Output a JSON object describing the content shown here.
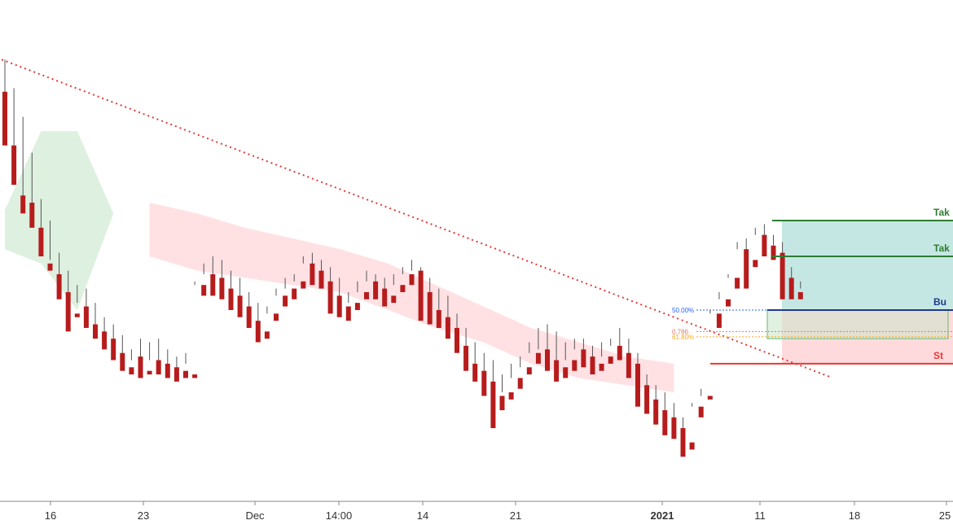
{
  "chart_data": {
    "type": "candlestick",
    "title": "",
    "xlabel": "",
    "ylabel": "",
    "x_ticks": [
      "16",
      "23",
      "Dec",
      "14:00",
      "14",
      "21",
      "2021",
      "11",
      "18",
      "25"
    ],
    "x_tick_bold": [
      "2021"
    ],
    "candles": [
      [
        1,
        96,
        105,
        83,
        81
      ],
      [
        2,
        81,
        97,
        73,
        70
      ],
      [
        3,
        67,
        89,
        64,
        62
      ],
      [
        4,
        65,
        79,
        60,
        58
      ],
      [
        5,
        58,
        66,
        52,
        50
      ],
      [
        6,
        48,
        60,
        49,
        46
      ],
      [
        7,
        45,
        51,
        40,
        38
      ],
      [
        8,
        40,
        46,
        32,
        29
      ],
      [
        9,
        34,
        42,
        37,
        33
      ],
      [
        10,
        36,
        41,
        32,
        30
      ],
      [
        11,
        31,
        37,
        29,
        27
      ],
      [
        12,
        29,
        33,
        26,
        24
      ],
      [
        13,
        27,
        31,
        23,
        21
      ],
      [
        14,
        23,
        28,
        20,
        18
      ],
      [
        15,
        19,
        24,
        21,
        17
      ],
      [
        16,
        22,
        27,
        19,
        16
      ],
      [
        17,
        18,
        26,
        21,
        17
      ],
      [
        18,
        21,
        27,
        19,
        17
      ],
      [
        19,
        20,
        24,
        18,
        16
      ],
      [
        20,
        19,
        22,
        17,
        15
      ],
      [
        21,
        18,
        23,
        20,
        16
      ],
      [
        22,
        17,
        43,
        42,
        16
      ],
      [
        23,
        42,
        48,
        45,
        39
      ],
      [
        24,
        45,
        50,
        44,
        39
      ],
      [
        25,
        44,
        49,
        41,
        38
      ],
      [
        26,
        41,
        46,
        39,
        35
      ],
      [
        27,
        39,
        44,
        36,
        33
      ],
      [
        28,
        36,
        40,
        32,
        30
      ],
      [
        29,
        32,
        37,
        29,
        26
      ],
      [
        30,
        29,
        36,
        34,
        27
      ],
      [
        31,
        34,
        41,
        39,
        32
      ],
      [
        32,
        39,
        44,
        41,
        36
      ],
      [
        33,
        41,
        45,
        43,
        38
      ],
      [
        34,
        43,
        50,
        48,
        41
      ],
      [
        35,
        48,
        51,
        46,
        42
      ],
      [
        36,
        46,
        49,
        43,
        41
      ],
      [
        37,
        43,
        47,
        39,
        34
      ],
      [
        38,
        39,
        44,
        36,
        33
      ],
      [
        39,
        36,
        40,
        37,
        32
      ],
      [
        40,
        37,
        43,
        40,
        35
      ],
      [
        41,
        40,
        46,
        43,
        38
      ],
      [
        42,
        43,
        45,
        41,
        38
      ],
      [
        43,
        41,
        44,
        39,
        36
      ],
      [
        44,
        39,
        45,
        42,
        37
      ],
      [
        45,
        42,
        47,
        45,
        40
      ],
      [
        46,
        45,
        49,
        46,
        42
      ],
      [
        47,
        46,
        47,
        40,
        32
      ],
      [
        48,
        40,
        44,
        35,
        31
      ],
      [
        49,
        35,
        41,
        33,
        30
      ],
      [
        50,
        33,
        39,
        30,
        27
      ],
      [
        51,
        30,
        34,
        25,
        23
      ],
      [
        52,
        25,
        30,
        20,
        18
      ],
      [
        53,
        20,
        26,
        18,
        15
      ],
      [
        54,
        18,
        23,
        15,
        11
      ],
      [
        55,
        15,
        21,
        11,
        2
      ],
      [
        56,
        11,
        17,
        12,
        7
      ],
      [
        57,
        12,
        20,
        16,
        10
      ],
      [
        58,
        16,
        22,
        19,
        13
      ],
      [
        59,
        19,
        26,
        23,
        17
      ],
      [
        60,
        23,
        30,
        24,
        20
      ],
      [
        61,
        24,
        31,
        21,
        18
      ],
      [
        62,
        21,
        29,
        19,
        15
      ],
      [
        63,
        19,
        26,
        21,
        16
      ],
      [
        64,
        21,
        27,
        24,
        18
      ],
      [
        65,
        24,
        27,
        22,
        19
      ],
      [
        66,
        22,
        25,
        20,
        17
      ],
      [
        67,
        20,
        26,
        22,
        18
      ],
      [
        68,
        22,
        27,
        25,
        20
      ],
      [
        69,
        25,
        30,
        23,
        21
      ],
      [
        70,
        23,
        27,
        20,
        16
      ],
      [
        71,
        20,
        23,
        14,
        8
      ],
      [
        72,
        14,
        17,
        10,
        6
      ],
      [
        73,
        10,
        14,
        7,
        3
      ],
      [
        74,
        7,
        12,
        5,
        0
      ],
      [
        75,
        5,
        9,
        2,
        -1
      ],
      [
        76,
        2,
        5,
        -2,
        -6
      ],
      [
        77,
        -2,
        9,
        8,
        -4
      ],
      [
        78,
        8,
        13,
        11,
        5
      ],
      [
        79,
        11,
        35,
        34,
        10
      ],
      [
        80,
        34,
        40,
        38,
        30
      ],
      [
        81,
        38,
        45,
        44,
        36
      ],
      [
        82,
        44,
        54,
        52,
        41
      ],
      [
        83,
        52,
        55,
        49,
        41
      ],
      [
        84,
        49,
        58,
        56,
        47
      ],
      [
        85,
        56,
        59,
        53,
        50
      ],
      [
        86,
        53,
        56,
        51,
        49
      ],
      [
        87,
        51,
        54,
        44,
        38
      ],
      [
        88,
        44,
        47,
        40,
        38
      ],
      [
        89,
        40,
        43,
        41,
        38
      ]
    ],
    "ichimoku_cloud": [
      {
        "x": [
          1,
          17
        ],
        "top": [
          63,
          85,
          85,
          62,
          62
        ],
        "bottom": [
          52,
          48,
          35,
          62,
          62
        ],
        "color": "green"
      },
      {
        "x": [
          17,
          75
        ],
        "top": [
          65,
          62,
          58,
          55,
          52,
          48,
          42,
          36,
          30,
          26,
          22,
          20
        ],
        "bottom": [
          50,
          46,
          44,
          42,
          40,
          35,
          30,
          26,
          20,
          16,
          14,
          12
        ],
        "color": "red"
      }
    ],
    "trendline": {
      "from": [
        1,
        105
      ],
      "to": [
        85,
        25
      ],
      "style": "dotted",
      "color": "#e53935"
    },
    "fib_levels": [
      {
        "label": "50.00%",
        "value": 35,
        "color": "#2962ff"
      },
      {
        "label": "0.786",
        "value": 29,
        "color": "#e57373"
      },
      {
        "label": "61.80%",
        "value": 27.5,
        "color": "#f9a825"
      }
    ],
    "trade_levels": [
      {
        "label": "Tak",
        "value": 60,
        "color": "#2e7d32"
      },
      {
        "label": "Tak",
        "value": 50,
        "color": "#2e7d32"
      },
      {
        "label": "Bu",
        "value": 35,
        "color": "#1e3a8a"
      },
      {
        "label": "St",
        "value": 20,
        "color": "#e53935"
      }
    ],
    "zones": [
      {
        "name": "target",
        "from": 35,
        "to": 60,
        "color": "#b2dfdb"
      },
      {
        "name": "stop",
        "from": 20,
        "to": 35,
        "color": "#ffcdd2"
      },
      {
        "name": "entry-zone",
        "from": 27,
        "to": 35,
        "color": "#c8e6c9"
      }
    ],
    "colors": {
      "up": "#2e7d32",
      "down": "#b71c1c",
      "axis": "#333333"
    }
  }
}
